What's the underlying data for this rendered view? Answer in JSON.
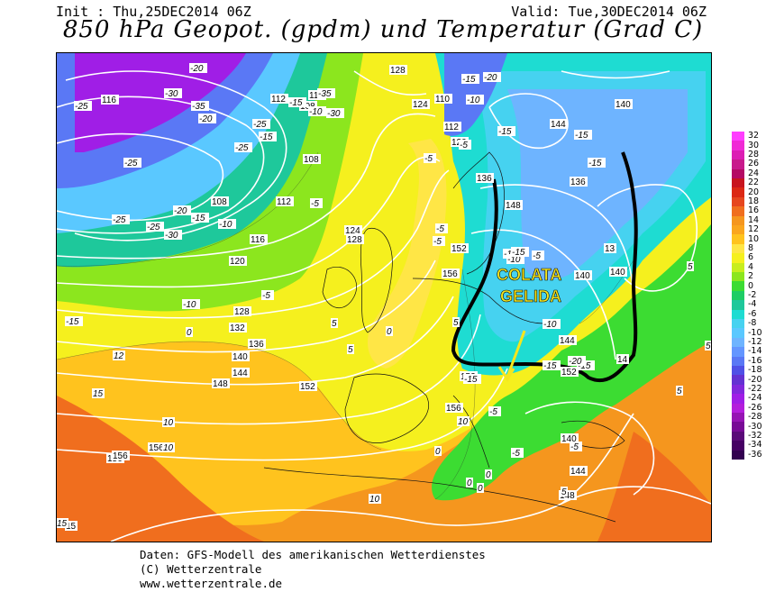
{
  "header": {
    "init": "Init : Thu,25DEC2014 06Z",
    "valid": "Valid: Tue,30DEC2014 06Z",
    "title": "850 hPa Geopot. (gpdm) und Temperatur (Grad C)"
  },
  "annotation": {
    "line1": "COLATA",
    "line2": "GELIDA",
    "color": "#f5e61e",
    "border_color": "#000000"
  },
  "colorbar": {
    "labels": [
      "32",
      "30",
      "28",
      "26",
      "24",
      "22",
      "20",
      "18",
      "16",
      "14",
      "12",
      "10",
      "8",
      "6",
      "4",
      "2",
      "0",
      "-2",
      "-4",
      "-6",
      "-8",
      "-10",
      "-12",
      "-14",
      "-16",
      "-18",
      "-20",
      "-22",
      "-24",
      "-26",
      "-28",
      "-30",
      "-32",
      "-34",
      "-36"
    ],
    "colors": [
      "#ff3dff",
      "#f02ad6",
      "#dc1eb4",
      "#c81a8c",
      "#b40a64",
      "#c8141e",
      "#dc2814",
      "#e6461e",
      "#f06e1e",
      "#f5961e",
      "#faa61e",
      "#ffc31e",
      "#ffe646",
      "#f5f01e",
      "#c8ee1e",
      "#8ce61e",
      "#3cdc32",
      "#1ecd64",
      "#1ec89b",
      "#1edcd2",
      "#46d2f0",
      "#5ac8ff",
      "#6eb4ff",
      "#6496ff",
      "#5a78f5",
      "#5050e6",
      "#6432d2",
      "#8228dc",
      "#a01ee6",
      "#b41edc",
      "#9614b4",
      "#780a96",
      "#5a0a78",
      "#460064",
      "#320050"
    ]
  },
  "map_labels": {
    "geopotential": [
      "128",
      "116",
      "112",
      "108",
      "112",
      "124",
      "110",
      "112",
      "120",
      "140",
      "144",
      "136",
      "140",
      "148",
      "152",
      "156",
      "108",
      "112",
      "108",
      "124",
      "128",
      "116",
      "120",
      "128",
      "132",
      "136",
      "140",
      "144",
      "148",
      "152",
      "156",
      "136",
      "140",
      "144",
      "152",
      "156",
      "140",
      "144",
      "148",
      "152",
      "156",
      "156",
      "13",
      "14",
      "152",
      "15"
    ],
    "temperature": [
      "-20",
      "-25",
      "-30",
      "-35",
      "-20",
      "-15",
      "-10",
      "-5",
      "-25",
      "-25",
      "-20",
      "-25",
      "-35",
      "-30",
      "-25",
      "-15",
      "-25",
      "-30",
      "-15",
      "-10",
      "-5",
      "0",
      "5",
      "10",
      "15",
      "-15",
      "-10",
      "-5",
      "-5",
      "0",
      "-5",
      "-15",
      "-20",
      "-15",
      "-15",
      "-15",
      "-10",
      "-5",
      "-15",
      "-10",
      "-5",
      "-15",
      "-15",
      "-5",
      "-5",
      "0",
      "0",
      "0",
      "0",
      "5",
      "5",
      "10",
      "10",
      "10",
      "15",
      "12",
      "-15",
      "5",
      "-15",
      "-5",
      "5",
      "5",
      "5",
      "-10",
      "-20"
    ]
  },
  "footer": {
    "line1": "Daten: GFS-Modell des amerikanischen Wetterdienstes",
    "line2": "(C) Wetterzentrale",
    "line3": "www.wetterzentrale.de"
  }
}
